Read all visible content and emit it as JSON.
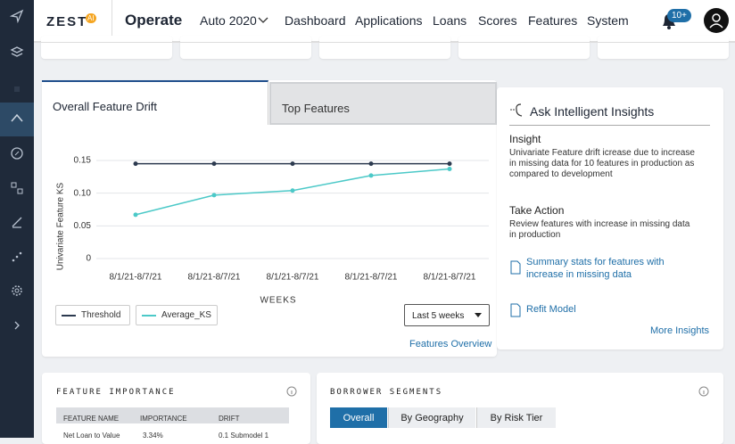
{
  "header": {
    "logo": "ZEST",
    "logo_badge": "AI",
    "title": "Operate",
    "selector": "Auto 2020",
    "nav": [
      "Dashboard",
      "Applications",
      "Loans",
      "Scores",
      "Features",
      "System"
    ],
    "notifications": "10+"
  },
  "drift_panel": {
    "tabs": [
      "Overall Feature Drift",
      "Top Features"
    ],
    "chart_data": {
      "type": "line",
      "ylabel": "Univariate Feature KS",
      "xlabel": "WEEKS",
      "categories": [
        "8/1/21-8/7/21",
        "8/1/21-8/7/21",
        "8/1/21-8/7/21",
        "8/1/21-8/7/21",
        "8/1/21-8/7/21"
      ],
      "series": [
        {
          "name": "Threshold",
          "color": "#2c3a4f",
          "values": [
            0.145,
            0.145,
            0.145,
            0.145,
            0.145
          ]
        },
        {
          "name": "Average_KS",
          "color": "#4cc9c8",
          "values": [
            0.067,
            0.097,
            0.104,
            0.127,
            0.137
          ]
        }
      ],
      "ylim": [
        0,
        0.15
      ],
      "yticks": [
        0,
        0.05,
        {
          "value": 0.1,
          "label": "0.10"
        },
        0.15
      ],
      "grid": true
    },
    "range_select": "Last 5 weeks",
    "link": "Features Overview"
  },
  "insights": {
    "title": "Ask Intelligent Insights",
    "insight_heading": "Insight",
    "insight_text": "Univariate Feature drift icrease due to increase in missing data for 10 features in production as compared to development",
    "action_heading": "Take Action",
    "action_text": "Review features with increase in missing data in production",
    "links": [
      "Summary stats for features with increase in missing data",
      "Refit Model"
    ],
    "more": "More Insights"
  },
  "feature_importance": {
    "title": "FEATURE IMPORTANCE",
    "columns": [
      "FEATURE NAME",
      "IMPORTANCE",
      "DRIFT"
    ],
    "rows": [
      [
        "Net Loan to Value",
        "3.34%",
        "0.1 Submodel 1"
      ]
    ]
  },
  "borrower_segments": {
    "title": "BORROWER SEGMENTS",
    "tabs": [
      "Overall",
      "By Geography",
      "By Risk Tier"
    ]
  }
}
